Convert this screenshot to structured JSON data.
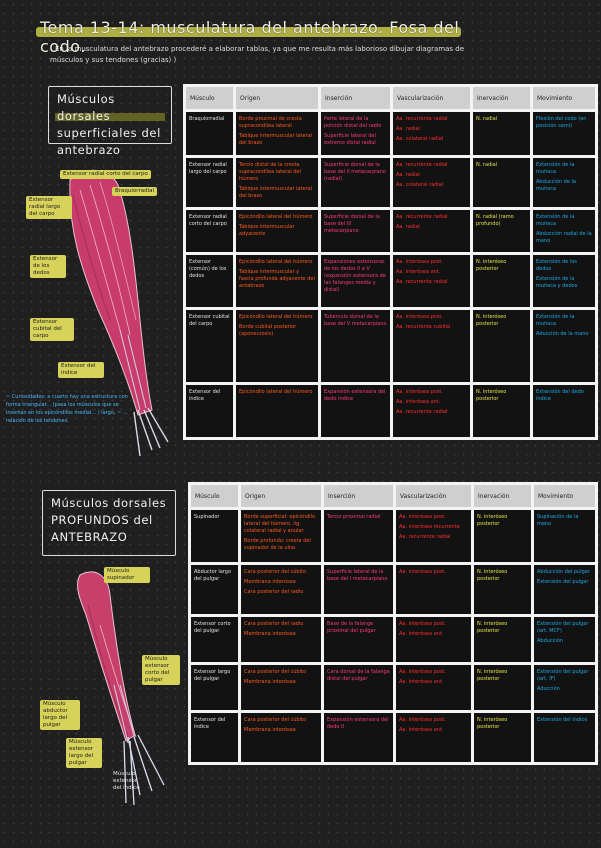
{
  "title": "Tema 13-14: musculatura del antebrazo. Fosa del codo.",
  "subtitle": "( En la musculatura del antebrazo procederé a elaborar tablas, ya que me resulta más laborioso dibujar diagramas de músculos y sus tendones (gracias) )",
  "section1": {
    "heading": "Músculos dorsales superficiales del antebrazo",
    "labels": {
      "extensor_radial_corto": "Extensor radial corto del carpo",
      "extensor_radial_largo": "Extensor radial largo del carpo",
      "braquiorradial": "Braquiorradial",
      "extensor_dedos": "Extensor de los dedos",
      "extensor_ulnar": "Extensor cubital del carpo",
      "extensor_indice": "Extensor del índice"
    },
    "note": "~ Curiosidades: a cuarto hay una estructura con forma triangular... (pasa los músculos que se insertan en los epicóndilos medial... ) largo, ~ ... relación de los tendones.",
    "headers": [
      "Músculo",
      "Origen",
      "Inserción",
      "Vascularización",
      "Inervación",
      "Movimiento"
    ],
    "rows": [
      {
        "musculo": "Braquiorradial",
        "origen": [
          "Borde proximal de cresta supracondílea lateral",
          "Tabique intermuscular lateral del brazo"
        ],
        "insercion": [
          "Parte lateral de la porción distal del radio",
          "Superficie lateral del extremo distal radial"
        ],
        "vasc": [
          "Aa. recurrente radial",
          "Aa. radial",
          "Aa. colateral radial"
        ],
        "inerv": [
          "N. radial"
        ],
        "mov": [
          "Flexión del codo (en posición semi)"
        ]
      },
      {
        "musculo": "Extensor radial largo del carpo",
        "origen": [
          "Tercio distal de la cresta supracondílea lateral del húmero",
          "Tabique intermuscular lateral del brazo"
        ],
        "insercion": [
          "Superficie dorsal de la base del II metacarpiano (radial)"
        ],
        "vasc": [
          "Aa. recurrente radial",
          "Aa. radial",
          "Aa. colateral radial"
        ],
        "inerv": [
          "N. radial"
        ],
        "mov": [
          "Extensión de la muñeca",
          "Abducción de la muñeca"
        ]
      },
      {
        "musculo": "Extensor radial corto del carpo",
        "origen": [
          "Epicóndilo lateral del húmero",
          "Tabique intermuscular adyacente"
        ],
        "insercion": [
          "Superficie dorsal de la base del III metacarpiano"
        ],
        "vasc": [
          "Aa. recurrente radial",
          "Aa. radial"
        ],
        "inerv": [
          "N. radial (ramo profundo)"
        ],
        "mov": [
          "Extensión de la muñeca",
          "Abducción radial de la mano"
        ]
      },
      {
        "musculo": "Extensor (común) de los dedos",
        "origen": [
          "Epicóndilo lateral del húmero",
          "Tabique intermuscular y fascia profunda adyacente del antebrazo"
        ],
        "insercion": [
          "Expansiones extensoras de los dedos II a V (expansión extensora de las falanges media y distal)"
        ],
        "vasc": [
          "Aa. interósea post.",
          "Aa. interósea ant.",
          "Aa. recurrente radial"
        ],
        "inerv": [
          "N. interóseo posterior"
        ],
        "mov": [
          "Extensión de los dedos",
          "Extensión de la muñeca y dedos"
        ]
      },
      {
        "musculo": "Extensor cubital del carpo",
        "origen": [
          "Epicóndilo lateral del húmero",
          "Borde cubital posterior (aponeurosis)"
        ],
        "insercion": [
          "Tubérculo dorsal de la base del V metacarpiano"
        ],
        "vasc": [
          "Aa. interósea post.",
          "Aa. recurrente cubital"
        ],
        "inerv": [
          "N. interóseo posterior"
        ],
        "mov": [
          "Extensión de la muñeca",
          "Aducción de la mano"
        ]
      },
      {
        "musculo": "Extensor del índice",
        "origen": [
          "Epicóndilo lateral del húmero"
        ],
        "insercion": [
          "Expansión extensora del dedo índice"
        ],
        "vasc": [
          "Aa. interósea post.",
          "Aa. interósea ant.",
          "Aa. recurrente radial"
        ],
        "inerv": [
          "N. interóseo posterior"
        ],
        "mov": [
          "Extensión del dedo índice"
        ]
      }
    ]
  },
  "section2": {
    "heading": "Músculos dorsales PROFUNDOS del ANTEBRAZO",
    "labels": {
      "supinador": "Músculo supinador",
      "extensor_corto_pulgar": "Músculo extensor corto del pulgar",
      "abductor_largo": "Músculo abductor largo del pulgar",
      "extensor_largo": "Músculo extensor largo del pulgar",
      "extensor_indice": "Músculo extensor del índice"
    },
    "headers": [
      "Músculo",
      "Origen",
      "Inserción",
      "Vascularización",
      "Inervación",
      "Movimiento"
    ],
    "rows": [
      {
        "musculo": "Supinador",
        "origen": [
          "Borde superficial: epicóndilo lateral del húmero, lig. colateral radial y anular",
          "Borde profundo: cresta del supinador de la ulna"
        ],
        "insercion": [
          "Tercio proximal radial"
        ],
        "vasc": [
          "Aa. interósea post.",
          "Aa. interósea recurrente",
          "Aa. recurrente radial"
        ],
        "inerv": [
          "N. interóseo posterior"
        ],
        "mov": [
          "Supinación de la mano"
        ]
      },
      {
        "musculo": "Abductor largo del pulgar",
        "origen": [
          "Cara posterior del cúbito",
          "Membrana interósea",
          "Cara posterior del radio"
        ],
        "insercion": [
          "Superficie lateral de la base del I metacarpiano"
        ],
        "vasc": [
          "Aa. interósea post."
        ],
        "inerv": [
          "N. interóseo posterior"
        ],
        "mov": [
          "Abducción del pulgar",
          "Extensión del pulgar"
        ]
      },
      {
        "musculo": "Extensor corto del pulgar",
        "origen": [
          "Cara posterior del radio",
          "Membrana interósea"
        ],
        "insercion": [
          "Base de la falange proximal del pulgar"
        ],
        "vasc": [
          "Aa. interósea post.",
          "Aa. interósea ant."
        ],
        "inerv": [
          "N. interóseo posterior"
        ],
        "mov": [
          "Extensión del pulgar (art. MCF)",
          "Abducción"
        ]
      },
      {
        "musculo": "Extensor largo del pulgar",
        "origen": [
          "Cara posterior del cúbito",
          "Membrana interósea"
        ],
        "insercion": [
          "Cara dorsal de la falange distal del pulgar"
        ],
        "vasc": [
          "Aa. interósea post.",
          "Aa. interósea ant."
        ],
        "inerv": [
          "N. interóseo posterior"
        ],
        "mov": [
          "Extensión del pulgar (art. IF)",
          "Aducción"
        ]
      },
      {
        "musculo": "Extensor del índice",
        "origen": [
          "Cara posterior del cúbito",
          "Membrana interósea"
        ],
        "insercion": [
          "Expansión extensora del dedo II"
        ],
        "vasc": [
          "Aa. interósea post.",
          "Aa. interósea ant."
        ],
        "inerv": [
          "N. interóseo posterior"
        ],
        "mov": [
          "Extensión del índice"
        ]
      }
    ]
  }
}
